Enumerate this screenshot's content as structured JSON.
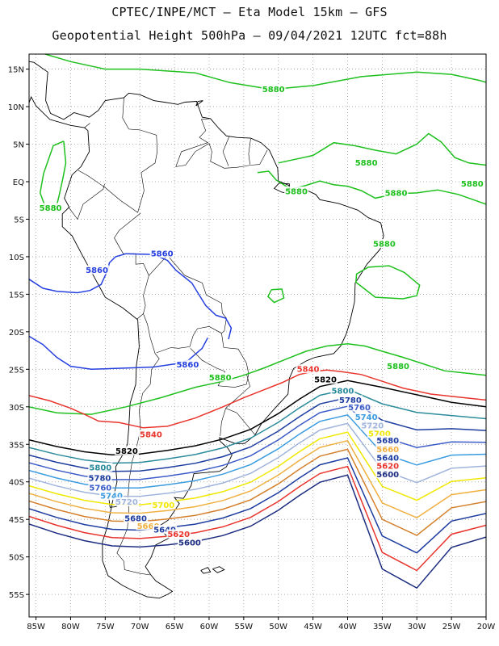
{
  "title_line1": "CPTEC/INPE/MCT –  Eta Model 15km – GFS",
  "title_line2": "Geopotential Height 500hPa – 09/04/2021 12UTC fct=88h",
  "axes": {
    "lon_labels": [
      "85W",
      "80W",
      "75W",
      "70W",
      "65W",
      "60W",
      "55W",
      "50W",
      "45W",
      "40W",
      "35W",
      "30W",
      "25W",
      "20W"
    ],
    "lat_labels": [
      "15N",
      "10N",
      "5N",
      "EQ",
      "5S",
      "10S",
      "15S",
      "20S",
      "25S",
      "30S",
      "35S",
      "40S",
      "45S",
      "50S",
      "55S"
    ],
    "lon_range": [
      -86,
      -20
    ],
    "lat_range": [
      17,
      -58
    ]
  },
  "colors": {
    "c5880": "#1ec01e",
    "c5860": "#2640e0",
    "c5840": "#e8342c",
    "c5820": "#000000",
    "c5800": "#2c8c9c",
    "c5780": "#1c3ca0",
    "c5760": "#3c5cc8",
    "c5740": "#3c9ce0",
    "c5720": "#a0b4dc",
    "c5700": "#f0e800",
    "c5680": "#f0b040",
    "c5660": "#d4802c"
  },
  "contours": [
    {
      "value": "5880",
      "color": "#1ec01e"
    },
    {
      "value": "5860",
      "color": "#2640e0"
    },
    {
      "value": "5840",
      "color": "#e8342c"
    },
    {
      "value": "5820",
      "color": "#000000"
    },
    {
      "value": "5800",
      "color": "#2c8c9c"
    },
    {
      "value": "5780",
      "color": "#1c3ca0"
    },
    {
      "value": "5760",
      "color": "#3c5cc8"
    },
    {
      "value": "5740",
      "color": "#3c9ce0"
    },
    {
      "value": "5720",
      "color": "#a0b4dc"
    },
    {
      "value": "5700",
      "color": "#f0e800"
    },
    {
      "value": "5680",
      "color": "#f0b040"
    },
    {
      "value": "5660",
      "color": "#d4802c"
    },
    {
      "value": "5640",
      "color": "#1c3ca0"
    },
    {
      "value": "5620",
      "color": "#e8342c"
    },
    {
      "value": "5600",
      "color": "#1c2c80"
    }
  ],
  "labels": [
    {
      "text": "5880",
      "lon": -50.7,
      "lat": 12.1,
      "color": "#1ec01e"
    },
    {
      "text": "5880",
      "lon": -37.3,
      "lat": 2.3,
      "color": "#1ec01e"
    },
    {
      "text": "5880",
      "lon": -22,
      "lat": -0.5,
      "color": "#1ec01e"
    },
    {
      "text": "5880",
      "lon": -82.9,
      "lat": -3.7,
      "color": "#1ec01e"
    },
    {
      "text": "5880",
      "lon": -47.4,
      "lat": -1.5,
      "color": "#1ec01e"
    },
    {
      "text": "5880",
      "lon": -33,
      "lat": -1.7,
      "color": "#1ec01e"
    },
    {
      "text": "5880",
      "lon": -34.7,
      "lat": -8.5,
      "color": "#1ec01e"
    },
    {
      "text": "5880",
      "lon": -32.7,
      "lat": -24.8,
      "color": "#1ec01e"
    },
    {
      "text": "5880",
      "lon": -58.4,
      "lat": -26.3,
      "color": "#1ec01e"
    },
    {
      "text": "5860",
      "lon": -66.8,
      "lat": -9.8,
      "color": "#2640e0"
    },
    {
      "text": "5860",
      "lon": -76.2,
      "lat": -12.0,
      "color": "#2640e0"
    },
    {
      "text": "5860",
      "lon": -63.1,
      "lat": -24.6,
      "color": "#2640e0"
    },
    {
      "text": "5840",
      "lon": -45.7,
      "lat": -25.2,
      "color": "#e8342c"
    },
    {
      "text": "5840",
      "lon": -68.4,
      "lat": -33.9,
      "color": "#e8342c"
    },
    {
      "text": "5820",
      "lon": -43.2,
      "lat": -26.6,
      "color": "#000000"
    },
    {
      "text": "5820",
      "lon": -71.9,
      "lat": -36.1,
      "color": "#000000"
    },
    {
      "text": "5800",
      "lon": -40.7,
      "lat": -28.1,
      "color": "#2c8c9c"
    },
    {
      "text": "5800",
      "lon": -75.7,
      "lat": -38.3,
      "color": "#2c8c9c"
    },
    {
      "text": "5780",
      "lon": -39.6,
      "lat": -29.3,
      "color": "#1c3ca0"
    },
    {
      "text": "5780",
      "lon": -75.8,
      "lat": -39.7,
      "color": "#1c3ca0"
    },
    {
      "text": "5760",
      "lon": -38.3,
      "lat": -30.3,
      "color": "#3c5cc8"
    },
    {
      "text": "5760",
      "lon": -75.7,
      "lat": -41.0,
      "color": "#3c5cc8"
    },
    {
      "text": "5740",
      "lon": -37.3,
      "lat": -31.6,
      "color": "#3c9ce0"
    },
    {
      "text": "5740",
      "lon": -74.1,
      "lat": -42.1,
      "color": "#3c9ce0"
    },
    {
      "text": "5720",
      "lon": -36.4,
      "lat": -32.7,
      "color": "#a0b4dc"
    },
    {
      "text": "5720",
      "lon": -71.9,
      "lat": -42.9,
      "color": "#a0b4dc"
    },
    {
      "text": "5700",
      "lon": -35.4,
      "lat": -33.8,
      "color": "#f0e800"
    },
    {
      "text": "5700",
      "lon": -66.6,
      "lat": -43.3,
      "color": "#f0e800"
    },
    {
      "text": "5680",
      "lon": -34.2,
      "lat": -34.7,
      "color": "#1c3ca0"
    },
    {
      "text": "5680",
      "lon": -70.6,
      "lat": -45.1,
      "color": "#1c3ca0"
    },
    {
      "text": "5660",
      "lon": -34.2,
      "lat": -35.9,
      "color": "#f0b040"
    },
    {
      "text": "5660",
      "lon": -68.8,
      "lat": -46.1,
      "color": "#f0b040"
    },
    {
      "text": "5640",
      "lon": -34.2,
      "lat": -37.0,
      "color": "#1c3ca0"
    },
    {
      "text": "5640",
      "lon": -66.4,
      "lat": -46.6,
      "color": "#1c3ca0"
    },
    {
      "text": "5620",
      "lon": -34.2,
      "lat": -38.1,
      "color": "#e8342c"
    },
    {
      "text": "5620",
      "lon": -64.4,
      "lat": -47.2,
      "color": "#e8342c"
    },
    {
      "text": "5600",
      "lon": -34.2,
      "lat": -39.2,
      "color": "#1c2c80"
    },
    {
      "text": "5600",
      "lon": -62.8,
      "lat": -48.3,
      "color": "#1c2c80"
    }
  ]
}
